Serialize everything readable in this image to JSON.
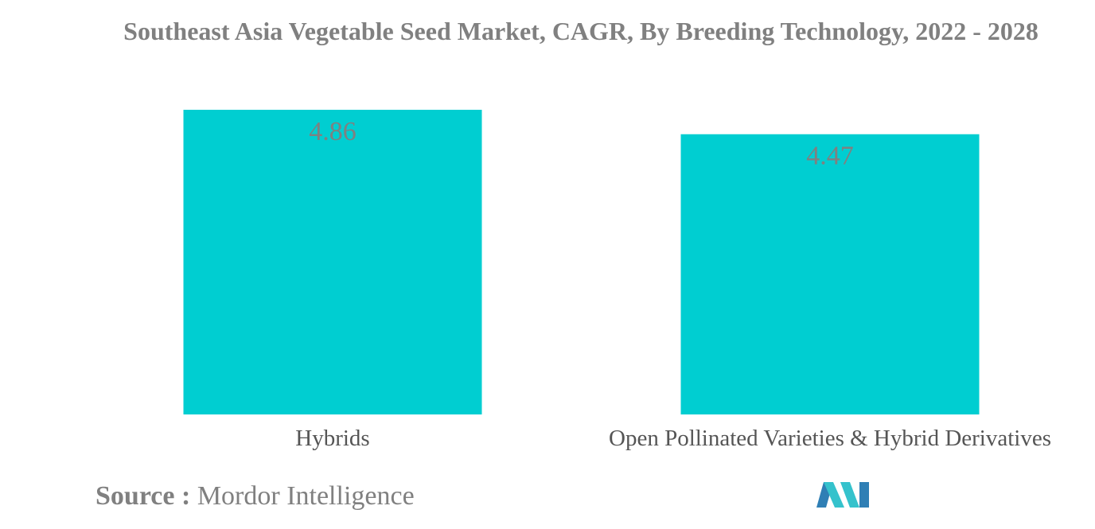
{
  "chart_data": {
    "type": "bar",
    "title": "Southeast Asia Vegetable Seed Market, CAGR, By Breeding Technology, 2022 - 2028",
    "categories": [
      "Hybrids",
      "Open Pollinated Varieties & Hybrid Derivatives"
    ],
    "values": [
      4.86,
      4.47
    ],
    "data_labels": [
      "4.86",
      "4.47"
    ],
    "xlabel": "",
    "ylabel": "",
    "ylim": [
      0,
      4.86
    ],
    "grid": false,
    "legend": "none",
    "bar_color": "#00CED1"
  },
  "source": {
    "label": "Source :",
    "value": "Mordor Intelligence"
  },
  "colors": {
    "logo_dark": "#2F7FB5",
    "logo_light": "#35C2CC"
  }
}
